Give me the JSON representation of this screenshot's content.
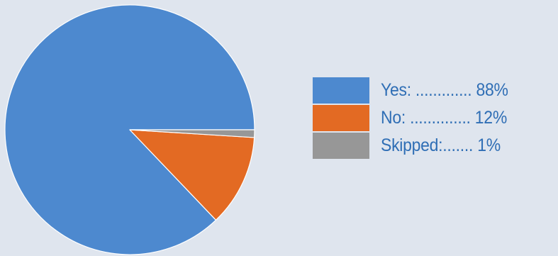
{
  "chart_data": {
    "type": "pie",
    "slices": [
      {
        "name": "Yes",
        "value": 88,
        "color": "#4d89cf"
      },
      {
        "name": "No",
        "value": 12,
        "color": "#e36a23"
      },
      {
        "name": "Skipped",
        "value": 1,
        "color": "#979797"
      }
    ],
    "legend": {
      "position": "right",
      "items": [
        {
          "label": "Yes: ............. 88%",
          "color": "#4d89cf"
        },
        {
          "label": "No: .............. 12%",
          "color": "#e36a23"
        },
        {
          "label": "Skipped:....... 1%",
          "color": "#979797"
        }
      ]
    },
    "title": "",
    "start_angle": "3 o'clock, counter-clockwise"
  },
  "colors": {
    "background": "#dfe5ee",
    "legend_text": "#2f6eb5"
  }
}
